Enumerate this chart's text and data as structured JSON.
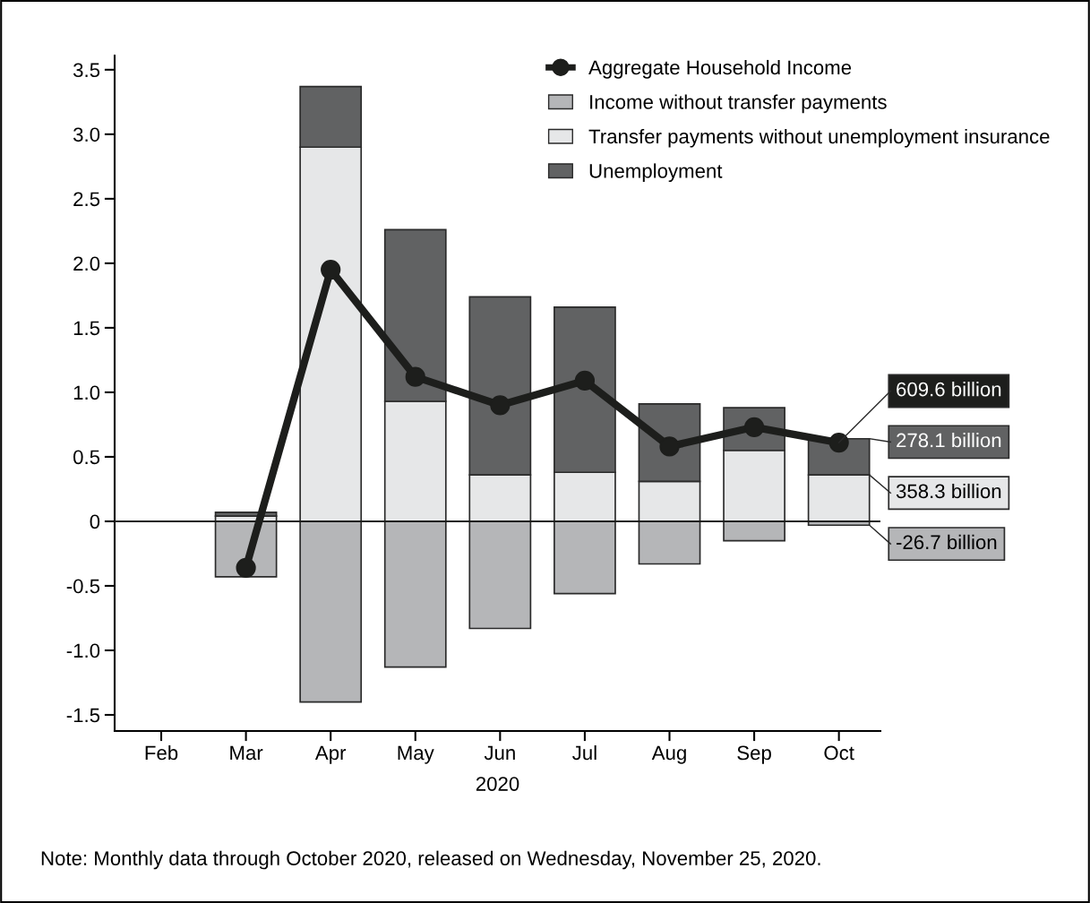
{
  "chart_data": {
    "type": "bar",
    "stacked": true,
    "categories": [
      "Feb",
      "Mar",
      "Apr",
      "May",
      "Jun",
      "Jul",
      "Aug",
      "Sep",
      "Oct"
    ],
    "xlabel": "2020",
    "series": [
      {
        "name": "Income without transfer payments",
        "color": "#b5b6b8",
        "values": [
          null,
          -0.43,
          -1.4,
          -1.13,
          -0.83,
          -0.56,
          -0.33,
          -0.15,
          -0.03
        ]
      },
      {
        "name": "Transfer payments without unemployment insurance",
        "color": "#e6e7e8",
        "values": [
          null,
          0.04,
          2.9,
          0.93,
          0.36,
          0.38,
          0.31,
          0.55,
          0.36
        ]
      },
      {
        "name": "Unemployment",
        "color": "#616263",
        "values": [
          null,
          0.03,
          0.47,
          1.33,
          1.38,
          1.28,
          0.6,
          0.33,
          0.28
        ]
      },
      {
        "name": "Aggregate Household Income",
        "type": "line",
        "color": "#1d1e1c",
        "values": [
          null,
          -0.36,
          1.95,
          1.12,
          0.9,
          1.09,
          0.58,
          0.73,
          0.61
        ]
      }
    ],
    "marker": "circle",
    "ylim": [
      -1.625,
      3.61
    ],
    "yticks": [
      {
        "value": -1.5,
        "label": "-1.5"
      },
      {
        "value": -1.0,
        "label": "-1.0"
      },
      {
        "value": -0.5,
        "label": "-0.5"
      },
      {
        "value": 0,
        "label": "0"
      },
      {
        "value": 0.5,
        "label": "0.5"
      },
      {
        "value": 1.0,
        "label": "1.0"
      },
      {
        "value": 1.5,
        "label": "1.5"
      },
      {
        "value": 2.0,
        "label": "2.0"
      },
      {
        "value": 2.5,
        "label": "2.5"
      },
      {
        "value": 3.0,
        "label": "3.0"
      },
      {
        "value": 3.5,
        "label": "3.5"
      }
    ],
    "ref_lines": [
      {
        "axis": "y",
        "value": 0,
        "color": "#1d1e1c"
      }
    ],
    "grid": false,
    "legend": "top right",
    "annotations": [
      {
        "text": "609.6 billion",
        "x": "Oct",
        "y": 0.61
      },
      {
        "text": "278.1 billion",
        "x": "Oct",
        "y": 0.64
      },
      {
        "text": "358.3 billion",
        "x": "Oct",
        "y": 0.36
      },
      {
        "text": "-26.7 billion",
        "x": "Oct",
        "y": -0.03
      },
      "Note: Monthly data through October 2020, released on Wednesday, November 25, 2020."
    ]
  }
}
